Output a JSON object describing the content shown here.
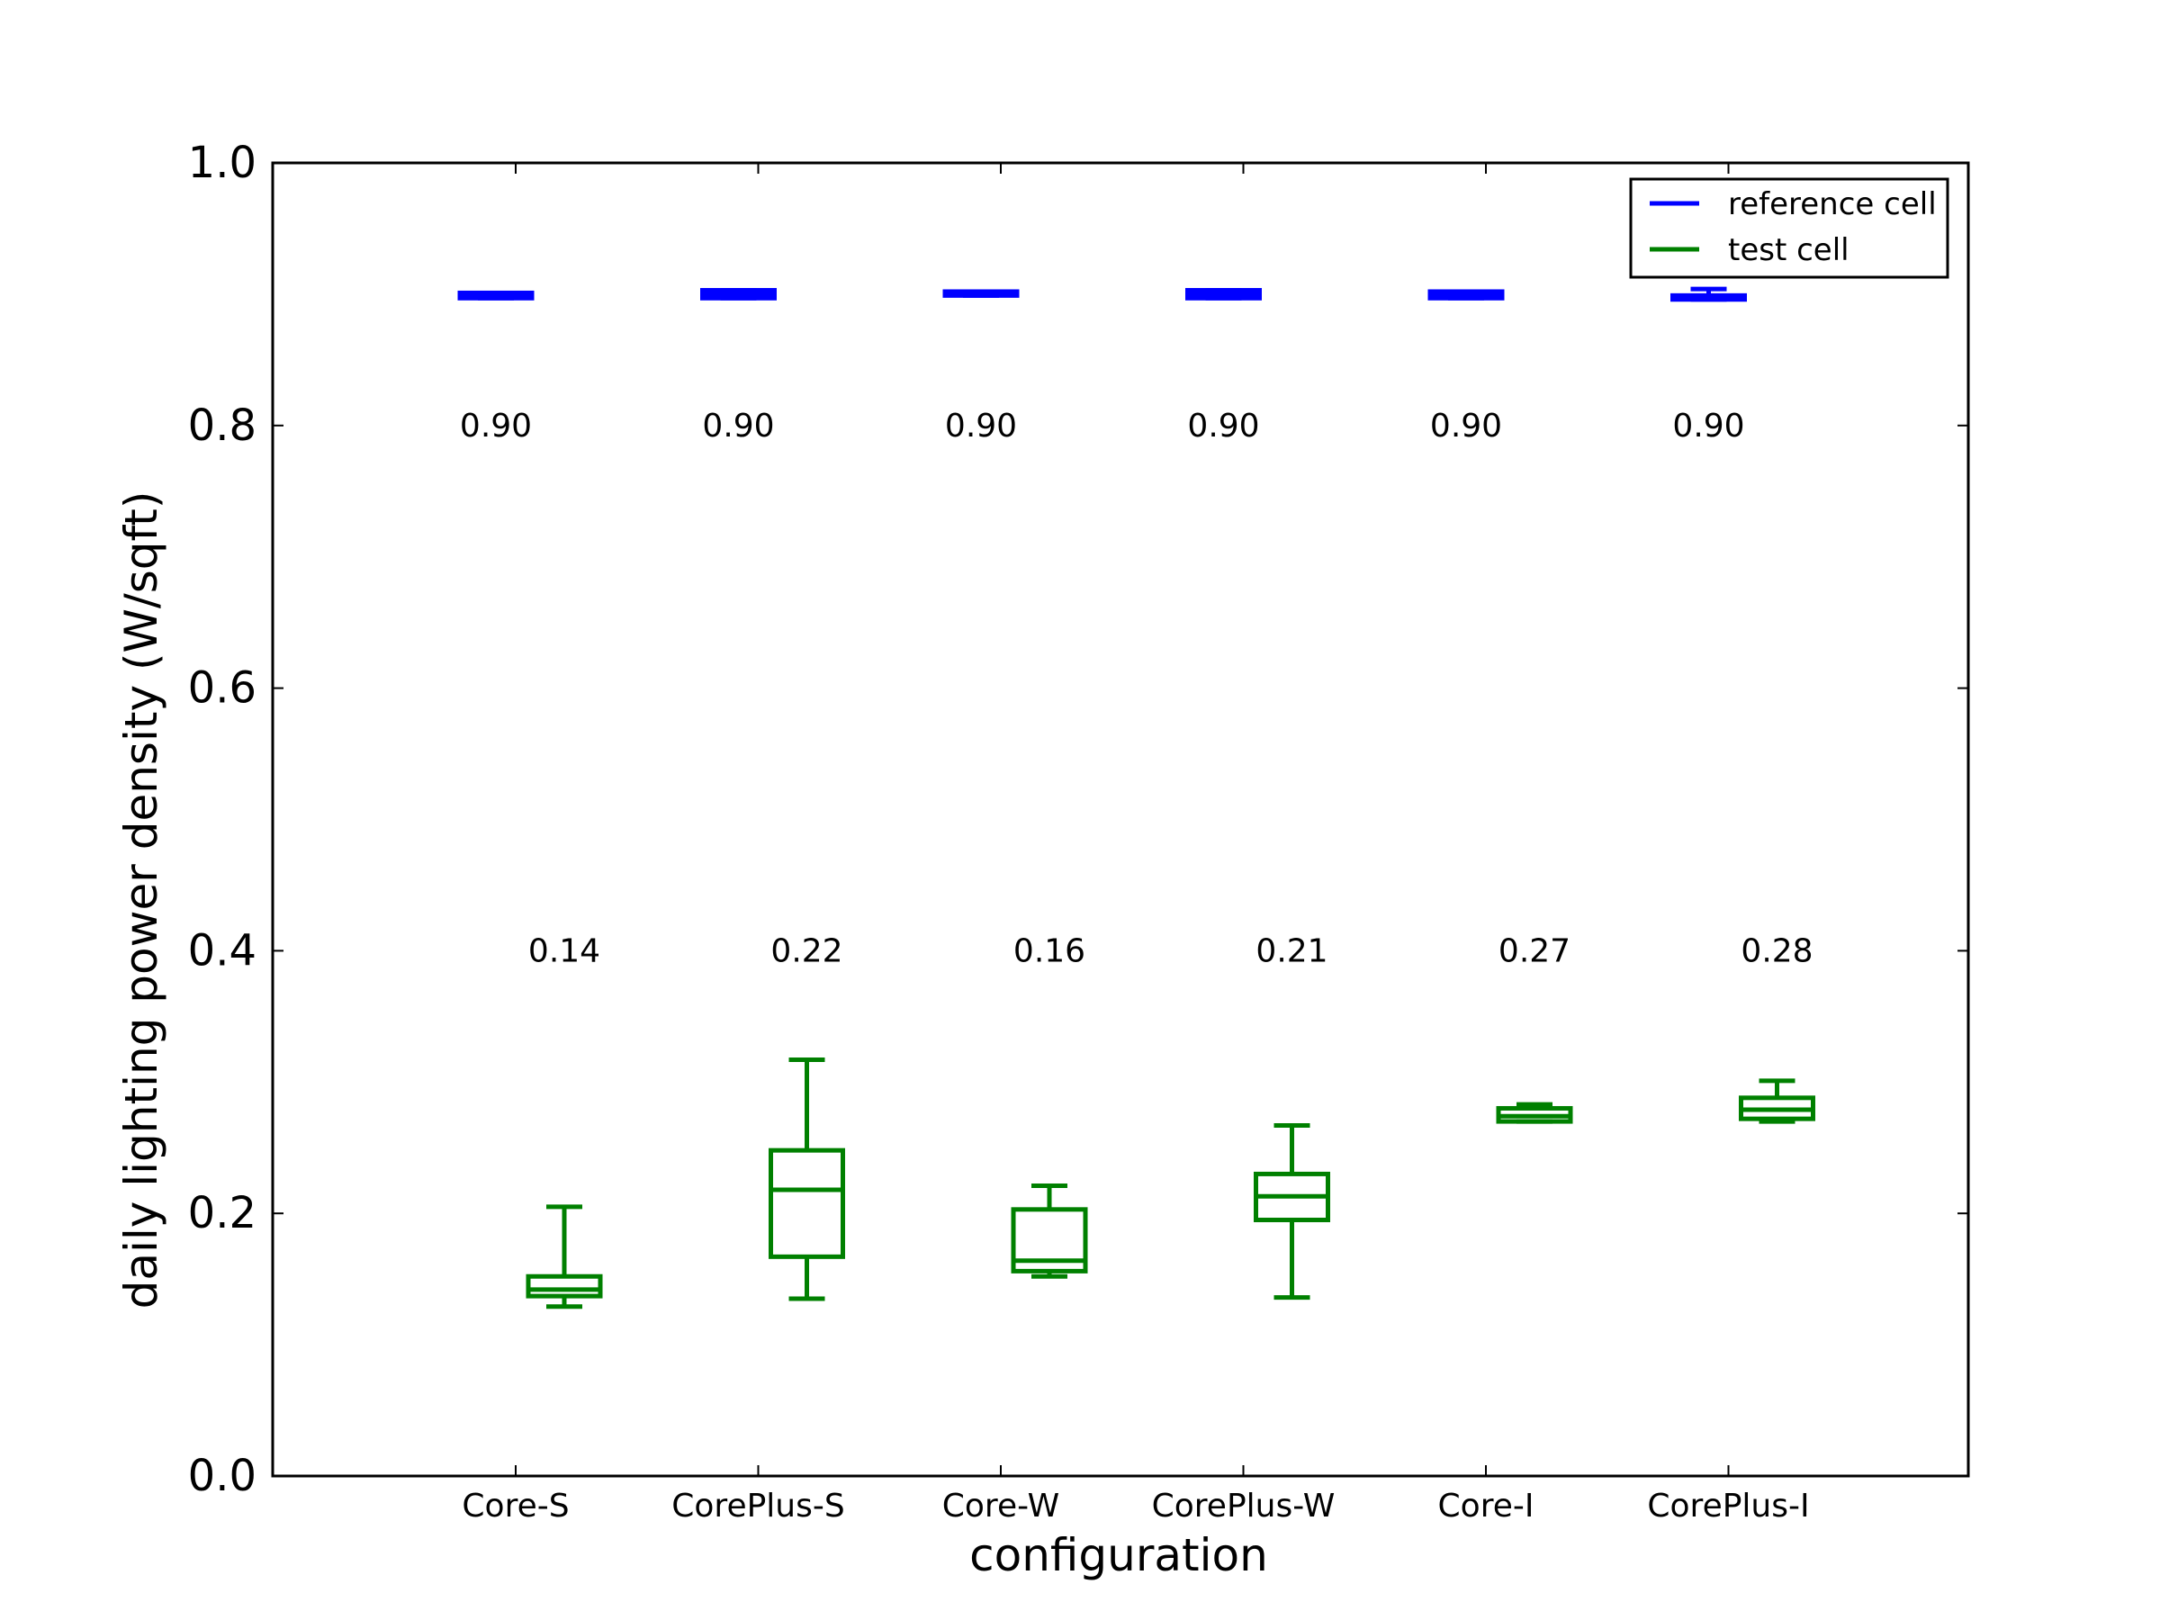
{
  "chart_data": {
    "type": "box",
    "xlabel": "configuration",
    "ylabel": "daily lighting power density (W/sqft)",
    "ylim": [
      0.0,
      1.0
    ],
    "yticks": [
      "0.0",
      "0.2",
      "0.4",
      "0.6",
      "0.8",
      "1.0"
    ],
    "categories": [
      "Core-S",
      "CorePlus-S",
      "Core-W",
      "CorePlus-W",
      "Core-I",
      "CorePlus-I"
    ],
    "legend": {
      "position": "top-right",
      "entries": [
        {
          "label": "reference cell",
          "color": "#0000ff"
        },
        {
          "label": "test cell",
          "color": "#008000"
        }
      ]
    },
    "series": [
      {
        "name": "reference cell",
        "color": "#0000ff",
        "boxes": [
          {
            "whisker_low": 0.897,
            "q1": 0.897,
            "median": 0.899,
            "q3": 0.901,
            "whisker_high": 0.901
          },
          {
            "whisker_low": 0.897,
            "q1": 0.897,
            "median": 0.9,
            "q3": 0.903,
            "whisker_high": 0.903
          },
          {
            "whisker_low": 0.899,
            "q1": 0.899,
            "median": 0.9,
            "q3": 0.902,
            "whisker_high": 0.902
          },
          {
            "whisker_low": 0.897,
            "q1": 0.897,
            "median": 0.9,
            "q3": 0.903,
            "whisker_high": 0.903
          },
          {
            "whisker_low": 0.897,
            "q1": 0.897,
            "median": 0.9,
            "q3": 0.902,
            "whisker_high": 0.902
          },
          {
            "whisker_low": 0.896,
            "q1": 0.896,
            "median": 0.898,
            "q3": 0.899,
            "whisker_high": 0.904
          }
        ],
        "mean_labels": [
          "0.90",
          "0.90",
          "0.90",
          "0.90",
          "0.90",
          "0.90"
        ],
        "mean_label_y": 0.8
      },
      {
        "name": "test cell",
        "color": "#008000",
        "boxes": [
          {
            "whisker_low": 0.129,
            "q1": 0.137,
            "median": 0.142,
            "q3": 0.152,
            "whisker_high": 0.205
          },
          {
            "whisker_low": 0.135,
            "q1": 0.167,
            "median": 0.218,
            "q3": 0.248,
            "whisker_high": 0.317
          },
          {
            "whisker_low": 0.152,
            "q1": 0.156,
            "median": 0.164,
            "q3": 0.203,
            "whisker_high": 0.221
          },
          {
            "whisker_low": 0.136,
            "q1": 0.195,
            "median": 0.213,
            "q3": 0.23,
            "whisker_high": 0.267
          },
          {
            "whisker_low": 0.27,
            "q1": 0.27,
            "median": 0.274,
            "q3": 0.28,
            "whisker_high": 0.283
          },
          {
            "whisker_low": 0.27,
            "q1": 0.272,
            "median": 0.279,
            "q3": 0.288,
            "whisker_high": 0.301
          }
        ],
        "mean_labels": [
          "0.14",
          "0.22",
          "0.16",
          "0.21",
          "0.27",
          "0.28"
        ],
        "mean_label_y": 0.4
      }
    ]
  }
}
